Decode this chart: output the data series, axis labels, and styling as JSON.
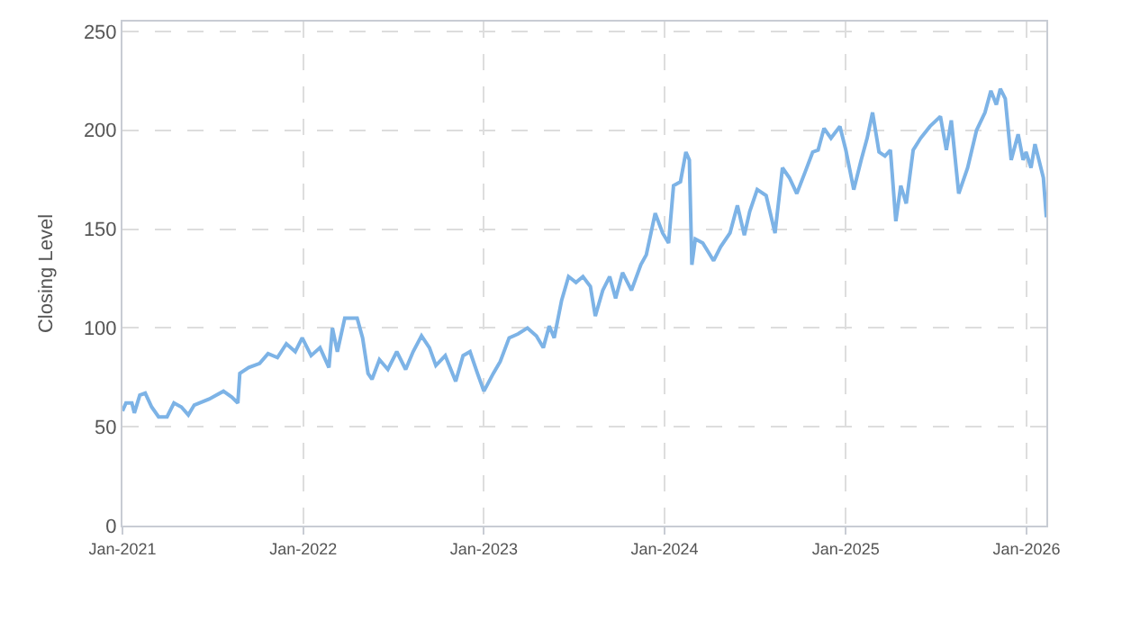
{
  "chart_data": {
    "type": "line",
    "ylabel": "Closing Level",
    "grid": true,
    "legend": false,
    "marker": "none",
    "line_style": "solid",
    "xlim": [
      "2021-01-01",
      "2026-02-10"
    ],
    "ylim": [
      0,
      255
    ],
    "xticks": [
      {
        "value": "2021-01-01",
        "label": "Jan-2021"
      },
      {
        "value": "2022-01-01",
        "label": "Jan-2022"
      },
      {
        "value": "2023-01-01",
        "label": "Jan-2023"
      },
      {
        "value": "2024-01-01",
        "label": "Jan-2024"
      },
      {
        "value": "2025-01-01",
        "label": "Jan-2025"
      },
      {
        "value": "2026-01-01",
        "label": "Jan-2026"
      }
    ],
    "yticks": [
      0,
      50,
      100,
      150,
      200,
      250
    ],
    "x": [
      "2021-01-01",
      "2021-01-08",
      "2021-01-20",
      "2021-01-25",
      "2021-02-05",
      "2021-02-16",
      "2021-03-01",
      "2021-03-15",
      "2021-04-01",
      "2021-04-15",
      "2021-04-30",
      "2021-05-14",
      "2021-05-26",
      "2021-06-25",
      "2021-07-24",
      "2021-08-10",
      "2021-08-22",
      "2021-08-26",
      "2021-09-13",
      "2021-10-05",
      "2021-10-22",
      "2021-11-10",
      "2021-11-28",
      "2021-12-16",
      "2021-12-30",
      "2022-01-17",
      "2022-02-04",
      "2022-02-22",
      "2022-03-01",
      "2022-03-11",
      "2022-03-26",
      "2022-04-20",
      "2022-05-01",
      "2022-05-12",
      "2022-05-20",
      "2022-06-04",
      "2022-06-21",
      "2022-07-09",
      "2022-07-27",
      "2022-08-11",
      "2022-08-28",
      "2022-09-13",
      "2022-09-26",
      "2022-10-15",
      "2022-11-05",
      "2022-11-20",
      "2022-12-04",
      "2022-12-19",
      "2023-01-01",
      "2023-01-20",
      "2023-02-03",
      "2023-02-21",
      "2023-03-11",
      "2023-03-30",
      "2023-04-17",
      "2023-05-01",
      "2023-05-13",
      "2023-05-23",
      "2023-06-07",
      "2023-06-21",
      "2023-07-06",
      "2023-07-20",
      "2023-08-04",
      "2023-08-14",
      "2023-08-29",
      "2023-09-12",
      "2023-09-24",
      "2023-10-08",
      "2023-10-26",
      "2023-11-14",
      "2023-11-25",
      "2023-12-13",
      "2023-12-28",
      "2024-01-09",
      "2024-01-19",
      "2024-02-02",
      "2024-02-13",
      "2024-02-20",
      "2024-02-25",
      "2024-03-03",
      "2024-03-18",
      "2024-04-09",
      "2024-04-23",
      "2024-05-12",
      "2024-05-27",
      "2024-06-10",
      "2024-06-21",
      "2024-07-06",
      "2024-07-24",
      "2024-08-11",
      "2024-08-26",
      "2024-09-09",
      "2024-09-24",
      "2024-10-11",
      "2024-10-26",
      "2024-11-06",
      "2024-11-18",
      "2024-12-02",
      "2024-12-20",
      "2025-01-01",
      "2025-01-17",
      "2025-02-01",
      "2025-02-13",
      "2025-02-24",
      "2025-03-09",
      "2025-03-21",
      "2025-04-01",
      "2025-04-12",
      "2025-04-22",
      "2025-05-03",
      "2025-05-17",
      "2025-06-01",
      "2025-06-20",
      "2025-07-11",
      "2025-07-23",
      "2025-08-02",
      "2025-08-17",
      "2025-09-04",
      "2025-09-22",
      "2025-10-09",
      "2025-10-21",
      "2025-11-01",
      "2025-11-09",
      "2025-11-19",
      "2025-12-01",
      "2025-12-15",
      "2025-12-25",
      "2025-12-31",
      "2026-01-10",
      "2026-01-18",
      "2026-01-27",
      "2026-02-04",
      "2026-02-10"
    ],
    "series": [
      {
        "color": "#7db3e6",
        "values": [
          58,
          62,
          62,
          57,
          66,
          67,
          60,
          55,
          55,
          62,
          60,
          56,
          61,
          64,
          68,
          65,
          62,
          77,
          80,
          82,
          87,
          85,
          92,
          88,
          95,
          86,
          90,
          80,
          100,
          88,
          105,
          105,
          95,
          77,
          74,
          84,
          79,
          88,
          79,
          88,
          96,
          90,
          81,
          86,
          73,
          86,
          88,
          77,
          68,
          77,
          83,
          95,
          97,
          100,
          96,
          90,
          101,
          95,
          114,
          126,
          123,
          126,
          121,
          106,
          119,
          126,
          115,
          128,
          119,
          132,
          137,
          158,
          148,
          143,
          172,
          174,
          189,
          185,
          132,
          145,
          143,
          134,
          141,
          148,
          162,
          147,
          159,
          170,
          167,
          148,
          181,
          176,
          168,
          179,
          189,
          190,
          201,
          196,
          202,
          190,
          170,
          185,
          196,
          209,
          189,
          187,
          190,
          154,
          172,
          163,
          190,
          196,
          202,
          207,
          190,
          205,
          168,
          181,
          200,
          209,
          220,
          213,
          221,
          216,
          185,
          198,
          185,
          189,
          181,
          193,
          184,
          176,
          156
        ]
      }
    ]
  }
}
